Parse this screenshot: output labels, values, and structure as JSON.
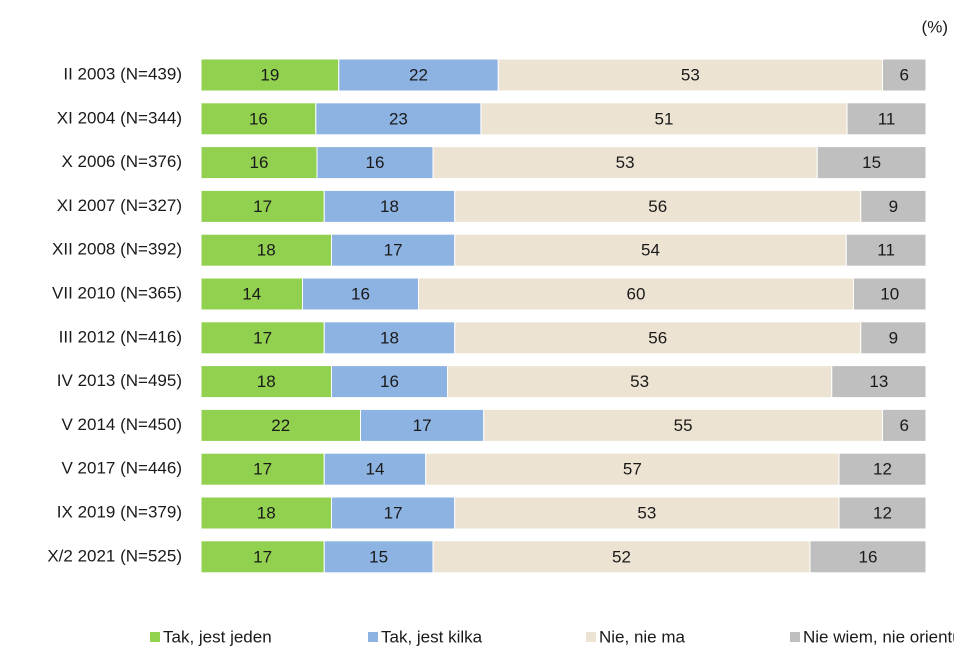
{
  "chart_data": {
    "type": "stacked_bar_100",
    "unit_label": "(%)",
    "categories": [
      "II 2003 (N=439)",
      "XI 2004 (N=344)",
      "X 2006 (N=376)",
      "XI 2007 (N=327)",
      "XII 2008 (N=392)",
      "VII 2010 (N=365)",
      "III 2012 (N=416)",
      "IV 2013 (N=495)",
      "V 2014 (N=450)",
      "V 2017 (N=446)",
      "IX 2019 (N=379)",
      "X/2 2021 (N=525)"
    ],
    "series": [
      {
        "name": "Tak, jest jeden",
        "color": "#92d050",
        "values": [
          19,
          16,
          16,
          17,
          18,
          14,
          17,
          18,
          22,
          17,
          18,
          17
        ]
      },
      {
        "name": "Tak, jest kilka",
        "color": "#8db3e2",
        "values": [
          22,
          23,
          16,
          18,
          17,
          16,
          18,
          16,
          17,
          14,
          17,
          15
        ]
      },
      {
        "name": "Nie, nie ma",
        "color": "#ece3d3",
        "values": [
          53,
          51,
          53,
          56,
          54,
          60,
          56,
          53,
          55,
          57,
          53,
          52
        ]
      },
      {
        "name": "Nie wiem, nie orientuję się",
        "color": "#bfbfbf",
        "values": [
          6,
          11,
          15,
          9,
          11,
          10,
          9,
          13,
          6,
          12,
          12,
          16
        ]
      }
    ]
  }
}
